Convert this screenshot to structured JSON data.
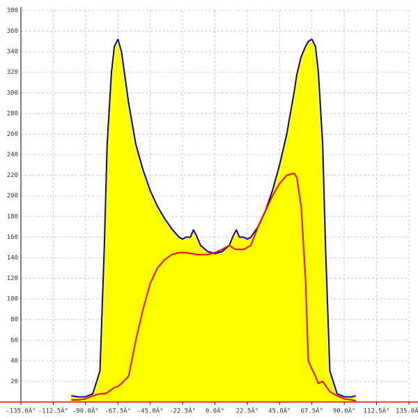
{
  "chart_data": {
    "type": "area",
    "x": [
      -100,
      -95,
      -90,
      -85,
      -80,
      -77,
      -75,
      -72,
      -70,
      -67.5,
      -65,
      -60,
      -55,
      -50,
      -45,
      -40,
      -35,
      -30,
      -25,
      -22.5,
      -20,
      -17,
      -15,
      -13,
      -10,
      -5,
      0,
      5,
      10,
      13,
      15,
      17,
      20,
      22.5,
      25,
      30,
      35,
      40,
      45,
      50,
      55,
      57,
      60,
      63,
      65,
      67.5,
      70,
      72,
      75,
      77,
      80,
      85,
      90,
      95,
      98
    ],
    "series": [
      {
        "kind": "area",
        "color": "#0000cc",
        "fill": "#ffff00",
        "values": [
          6,
          5,
          5,
          8,
          30,
          150,
          250,
          320,
          345,
          352,
          340,
          290,
          250,
          225,
          205,
          190,
          178,
          168,
          160,
          158,
          160,
          160,
          167,
          162,
          152,
          146,
          144,
          146,
          152,
          162,
          167,
          160,
          160,
          158,
          160,
          170,
          185,
          205,
          230,
          260,
          300,
          318,
          335,
          345,
          350,
          352,
          345,
          320,
          250,
          150,
          30,
          8,
          5,
          5,
          6
        ]
      },
      {
        "kind": "line",
        "color": "#ff0000",
        "values": [
          2,
          2,
          3,
          6,
          8,
          8,
          9,
          12,
          14,
          15,
          18,
          25,
          60,
          90,
          115,
          130,
          138,
          143,
          145,
          145,
          145,
          144,
          144,
          143,
          143,
          143,
          145,
          148,
          152,
          149,
          148,
          148,
          148,
          150,
          152,
          170,
          185,
          200,
          212,
          220,
          222,
          218,
          190,
          120,
          40,
          32,
          25,
          18,
          20,
          16,
          10,
          6,
          3,
          2,
          1
        ]
      }
    ],
    "xlim": [
      -135,
      135
    ],
    "xticks": [
      {
        "value": -135,
        "label": "-135.0Â°"
      },
      {
        "value": -112.5,
        "label": "-112.5Â°"
      },
      {
        "value": -90,
        "label": "-90.0Â°"
      },
      {
        "value": -67.5,
        "label": "-67.5Â°"
      },
      {
        "value": -45,
        "label": "-45.0Â°"
      },
      {
        "value": -22.5,
        "label": "-22.5Â°"
      },
      {
        "value": 0,
        "label": "0.0Â°"
      },
      {
        "value": 22.5,
        "label": "22.5Â°"
      },
      {
        "value": 45,
        "label": "45.0Â°"
      },
      {
        "value": 67.5,
        "label": "67.5Â°"
      },
      {
        "value": 90,
        "label": "90.0Â°"
      },
      {
        "value": 112.5,
        "label": "112.5Â°"
      },
      {
        "value": 135,
        "label": "135.0Â°"
      }
    ],
    "ylim": [
      0,
      380
    ],
    "yticks": [
      20,
      40,
      60,
      80,
      100,
      120,
      140,
      160,
      180,
      200,
      220,
      240,
      260,
      280,
      300,
      320,
      340,
      360,
      380
    ],
    "grid": true
  }
}
